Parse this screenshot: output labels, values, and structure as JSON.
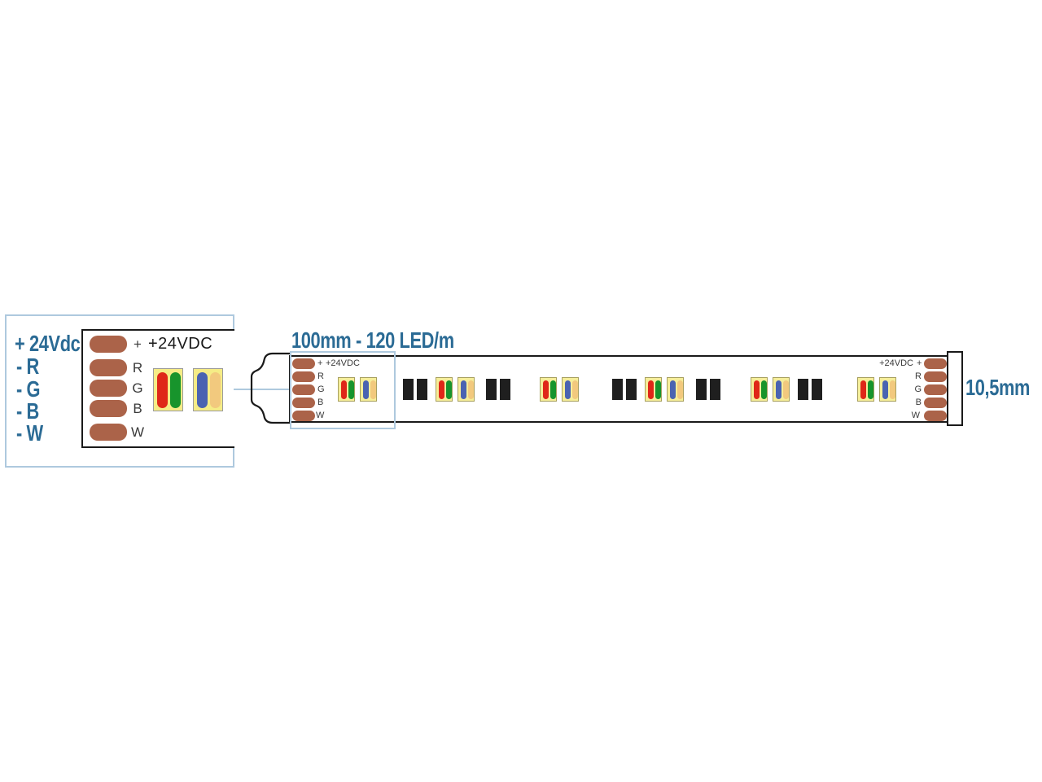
{
  "detail_box": {
    "wire_labels": [
      "+ 24Vdc",
      "- R",
      "- G",
      "- B",
      "- W"
    ],
    "header": "+24VDC",
    "pad_labels": [
      "+",
      "R",
      "G",
      "B",
      "W"
    ]
  },
  "strip": {
    "section_label": "100mm - 120 LED/m",
    "left_header": "+24VDC",
    "right_header": "+24VDC",
    "pad_labels": [
      "+",
      "R",
      "G",
      "B",
      "W"
    ],
    "width_label": "10,5mm"
  },
  "colors": {
    "accent_blue": "#2b6b95",
    "box_blue": "#aec9de",
    "pad_brown": "#ab6349",
    "chip_yellow": "#f5ec86",
    "led_red": "#df2718",
    "led_green": "#17942c",
    "led_blue": "#4a63b1",
    "led_warm_white": "#f2c97e",
    "resistor_black": "#1f1f1f"
  }
}
